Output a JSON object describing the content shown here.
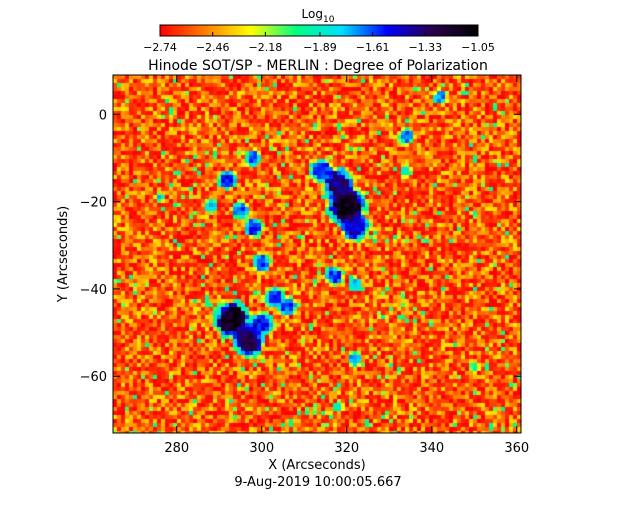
{
  "chart_data": {
    "type": "heatmap",
    "title": "Hinode SOT/SP - MERLIN : Degree of Polarization",
    "xlabel": "X (Arcseconds)",
    "ylabel": "Y (Arcseconds)",
    "footer": "9-Aug-2019 10:00:05.667",
    "colorbar": {
      "title_base": "Log",
      "title_sub": "10",
      "ticks": [
        -2.74,
        -2.46,
        -2.18,
        -1.89,
        -1.61,
        -1.33,
        -1.05
      ],
      "tick_labels": [
        "−2.74",
        "−2.46",
        "−2.18",
        "−1.89",
        "−1.61",
        "−1.33",
        "−1.05"
      ],
      "colormap": [
        "#ff0000",
        "#ff8000",
        "#ffff00",
        "#00ff80",
        "#00e0ff",
        "#0000ff",
        "#2a004a",
        "#000000"
      ]
    },
    "xlim": [
      265,
      361
    ],
    "ylim": [
      -73,
      9
    ],
    "xticks": [
      280,
      300,
      320,
      340,
      360
    ],
    "yticks": [
      0,
      -20,
      -40,
      -60
    ],
    "xtick_labels": [
      "280",
      "300",
      "320",
      "340",
      "360"
    ],
    "ytick_labels": [
      "0",
      "−20",
      "−40",
      "−60"
    ],
    "background_range": [
      -2.74,
      -2.3
    ],
    "features": [
      {
        "x": 320,
        "y": -21,
        "r": 3.2,
        "level": -1.15
      },
      {
        "x": 318,
        "y": -16,
        "r": 2.6,
        "level": -1.35
      },
      {
        "x": 322,
        "y": -26,
        "r": 2.4,
        "level": -1.45
      },
      {
        "x": 314,
        "y": -13,
        "r": 2.0,
        "level": -1.55
      },
      {
        "x": 293,
        "y": -47,
        "r": 3.0,
        "level": -1.15
      },
      {
        "x": 297,
        "y": -52,
        "r": 2.6,
        "level": -1.3
      },
      {
        "x": 300,
        "y": -48,
        "r": 2.0,
        "level": -1.5
      },
      {
        "x": 303,
        "y": -42,
        "r": 1.8,
        "level": -1.6
      },
      {
        "x": 306,
        "y": -44,
        "r": 1.6,
        "level": -1.6
      },
      {
        "x": 300,
        "y": -34,
        "r": 1.6,
        "level": -1.6
      },
      {
        "x": 298,
        "y": -26,
        "r": 1.6,
        "level": -1.55
      },
      {
        "x": 295,
        "y": -22,
        "r": 1.5,
        "level": -1.65
      },
      {
        "x": 292,
        "y": -15,
        "r": 1.6,
        "level": -1.55
      },
      {
        "x": 298,
        "y": -10,
        "r": 1.4,
        "level": -1.6
      },
      {
        "x": 288,
        "y": -21,
        "r": 1.2,
        "level": -1.8
      },
      {
        "x": 317,
        "y": -37,
        "r": 1.6,
        "level": -1.6
      },
      {
        "x": 322,
        "y": -39,
        "r": 1.2,
        "level": -1.75
      },
      {
        "x": 322,
        "y": -56,
        "r": 1.2,
        "level": -1.7
      },
      {
        "x": 334,
        "y": -5,
        "r": 1.4,
        "level": -1.7
      },
      {
        "x": 342,
        "y": 4,
        "r": 1.2,
        "level": -1.7
      },
      {
        "x": 276,
        "y": -19,
        "r": 0.8,
        "level": -1.75
      },
      {
        "x": 318,
        "y": -67,
        "r": 0.9,
        "level": -1.8
      },
      {
        "x": 350,
        "y": -58,
        "r": 0.9,
        "level": -1.9
      },
      {
        "x": 334,
        "y": -13,
        "r": 1.0,
        "level": -1.9
      }
    ]
  }
}
